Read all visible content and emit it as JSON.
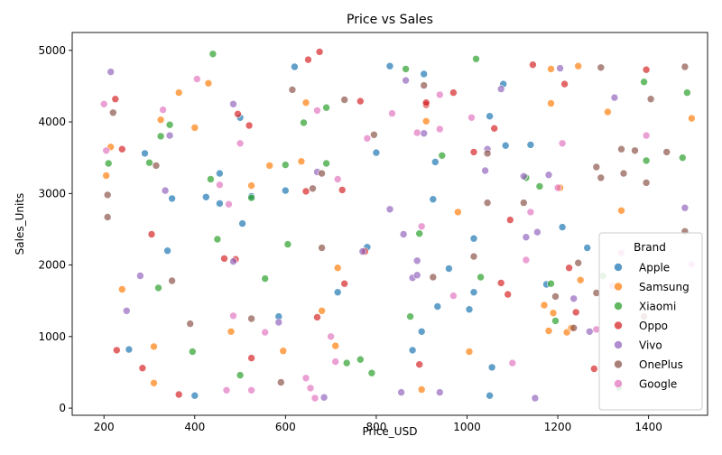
{
  "chart_data": {
    "type": "scatter",
    "title": "Price vs Sales",
    "xlabel": "Price_USD",
    "ylabel": "Sales_Units",
    "xlim": [
      130,
      1530
    ],
    "ylim": [
      -100,
      5250
    ],
    "xticks": [
      200,
      400,
      600,
      800,
      1000,
      1200,
      1400
    ],
    "yticks": [
      0,
      1000,
      2000,
      3000,
      4000,
      5000
    ],
    "grid": false,
    "legend": {
      "title": "Brand",
      "placement": "lower right"
    },
    "series": [
      {
        "name": "Apple",
        "color": "#1f77b4",
        "points": [
          [
            255,
            820
          ],
          [
            290,
            3560
          ],
          [
            340,
            2200
          ],
          [
            350,
            2930
          ],
          [
            400,
            175
          ],
          [
            425,
            2950
          ],
          [
            455,
            2860
          ],
          [
            455,
            3280
          ],
          [
            500,
            4060
          ],
          [
            505,
            2580
          ],
          [
            525,
            2960
          ],
          [
            585,
            1280
          ],
          [
            600,
            3040
          ],
          [
            620,
            4770
          ],
          [
            715,
            1620
          ],
          [
            780,
            2250
          ],
          [
            800,
            3570
          ],
          [
            830,
            4780
          ],
          [
            880,
            810
          ],
          [
            900,
            1070
          ],
          [
            905,
            4670
          ],
          [
            925,
            2920
          ],
          [
            930,
            3440
          ],
          [
            935,
            1420
          ],
          [
            960,
            1950
          ],
          [
            1005,
            1380
          ],
          [
            1015,
            2370
          ],
          [
            1015,
            1620
          ],
          [
            1050,
            4080
          ],
          [
            1050,
            175
          ],
          [
            1055,
            570
          ],
          [
            1080,
            4530
          ],
          [
            1085,
            3670
          ],
          [
            1140,
            3680
          ],
          [
            1175,
            1730
          ],
          [
            1210,
            2530
          ],
          [
            1265,
            2240
          ]
        ]
      },
      {
        "name": "Samsung",
        "color": "#ff7f0e",
        "points": [
          [
            205,
            3250
          ],
          [
            215,
            3650
          ],
          [
            240,
            1660
          ],
          [
            310,
            860
          ],
          [
            310,
            350
          ],
          [
            325,
            4030
          ],
          [
            365,
            4410
          ],
          [
            400,
            3920
          ],
          [
            430,
            4540
          ],
          [
            480,
            1070
          ],
          [
            525,
            3110
          ],
          [
            565,
            3390
          ],
          [
            595,
            800
          ],
          [
            635,
            3450
          ],
          [
            645,
            4270
          ],
          [
            680,
            1360
          ],
          [
            710,
            870
          ],
          [
            715,
            1960
          ],
          [
            900,
            260
          ],
          [
            910,
            4010
          ],
          [
            980,
            2740
          ],
          [
            1005,
            790
          ],
          [
            1170,
            1440
          ],
          [
            1180,
            1080
          ],
          [
            1185,
            4260
          ],
          [
            1185,
            4740
          ],
          [
            1190,
            1330
          ],
          [
            1205,
            3080
          ],
          [
            1220,
            1060
          ],
          [
            1230,
            1120
          ],
          [
            1245,
            4780
          ],
          [
            1250,
            1790
          ],
          [
            1310,
            4140
          ],
          [
            1340,
            2760
          ],
          [
            1495,
            4050
          ]
        ]
      },
      {
        "name": "Xiaomi",
        "color": "#2ca02c",
        "points": [
          [
            210,
            3420
          ],
          [
            300,
            3430
          ],
          [
            320,
            1680
          ],
          [
            325,
            3800
          ],
          [
            345,
            3960
          ],
          [
            395,
            790
          ],
          [
            435,
            3200
          ],
          [
            440,
            4950
          ],
          [
            450,
            2360
          ],
          [
            500,
            460
          ],
          [
            525,
            2940
          ],
          [
            555,
            1810
          ],
          [
            600,
            3400
          ],
          [
            605,
            2290
          ],
          [
            640,
            3990
          ],
          [
            690,
            4200
          ],
          [
            690,
            3420
          ],
          [
            735,
            630
          ],
          [
            765,
            680
          ],
          [
            790,
            490
          ],
          [
            865,
            4740
          ],
          [
            875,
            1280
          ],
          [
            895,
            2440
          ],
          [
            945,
            3530
          ],
          [
            1020,
            4880
          ],
          [
            1030,
            1830
          ],
          [
            1130,
            3220
          ],
          [
            1160,
            3100
          ],
          [
            1185,
            1740
          ],
          [
            1195,
            1220
          ],
          [
            1300,
            1850
          ],
          [
            1335,
            290
          ],
          [
            1390,
            4560
          ],
          [
            1395,
            3460
          ],
          [
            1475,
            3500
          ],
          [
            1485,
            4410
          ]
        ]
      },
      {
        "name": "Oppo",
        "color": "#d62728",
        "points": [
          [
            225,
            4320
          ],
          [
            228,
            810
          ],
          [
            240,
            3620
          ],
          [
            285,
            560
          ],
          [
            305,
            2430
          ],
          [
            365,
            190
          ],
          [
            465,
            2090
          ],
          [
            490,
            2080
          ],
          [
            495,
            4110
          ],
          [
            520,
            3950
          ],
          [
            525,
            700
          ],
          [
            645,
            3030
          ],
          [
            650,
            4870
          ],
          [
            670,
            1270
          ],
          [
            675,
            4980
          ],
          [
            725,
            3050
          ],
          [
            730,
            1740
          ],
          [
            765,
            4290
          ],
          [
            775,
            2190
          ],
          [
            895,
            610
          ],
          [
            910,
            4240
          ],
          [
            910,
            4270
          ],
          [
            970,
            4410
          ],
          [
            1015,
            3580
          ],
          [
            1060,
            3910
          ],
          [
            1075,
            1750
          ],
          [
            1090,
            1590
          ],
          [
            1095,
            2630
          ],
          [
            1145,
            4800
          ],
          [
            1215,
            4530
          ],
          [
            1225,
            1960
          ],
          [
            1240,
            1340
          ],
          [
            1280,
            550
          ],
          [
            1395,
            4730
          ]
        ]
      },
      {
        "name": "Vivo",
        "color": "#9467bd",
        "points": [
          [
            215,
            4700
          ],
          [
            250,
            1360
          ],
          [
            280,
            1850
          ],
          [
            335,
            3040
          ],
          [
            345,
            3810
          ],
          [
            485,
            4250
          ],
          [
            485,
            2050
          ],
          [
            585,
            1200
          ],
          [
            670,
            3300
          ],
          [
            685,
            150
          ],
          [
            770,
            2190
          ],
          [
            830,
            2780
          ],
          [
            855,
            220
          ],
          [
            860,
            2430
          ],
          [
            865,
            4580
          ],
          [
            880,
            1820
          ],
          [
            890,
            2060
          ],
          [
            890,
            1860
          ],
          [
            905,
            3840
          ],
          [
            940,
            220
          ],
          [
            1040,
            3320
          ],
          [
            1045,
            3620
          ],
          [
            1075,
            4460
          ],
          [
            1125,
            3240
          ],
          [
            1130,
            2390
          ],
          [
            1150,
            140
          ],
          [
            1155,
            2460
          ],
          [
            1180,
            3260
          ],
          [
            1205,
            4750
          ],
          [
            1235,
            1530
          ],
          [
            1270,
            1070
          ],
          [
            1325,
            4340
          ],
          [
            1480,
            2800
          ]
        ]
      },
      {
        "name": "OnePlus",
        "color": "#8c564b",
        "points": [
          [
            208,
            2980
          ],
          [
            208,
            2670
          ],
          [
            220,
            4130
          ],
          [
            315,
            3390
          ],
          [
            350,
            1780
          ],
          [
            390,
            1180
          ],
          [
            525,
            1250
          ],
          [
            590,
            360
          ],
          [
            615,
            4450
          ],
          [
            660,
            3070
          ],
          [
            680,
            3280
          ],
          [
            680,
            2240
          ],
          [
            730,
            4310
          ],
          [
            795,
            3820
          ],
          [
            905,
            4510
          ],
          [
            925,
            1830
          ],
          [
            1015,
            2120
          ],
          [
            1045,
            2870
          ],
          [
            1045,
            3560
          ],
          [
            1125,
            2870
          ],
          [
            1195,
            1560
          ],
          [
            1235,
            1120
          ],
          [
            1245,
            2030
          ],
          [
            1285,
            1610
          ],
          [
            1285,
            3370
          ],
          [
            1295,
            3220
          ],
          [
            1295,
            4760
          ],
          [
            1340,
            3620
          ],
          [
            1345,
            3280
          ],
          [
            1370,
            3600
          ],
          [
            1390,
            1280
          ],
          [
            1395,
            3150
          ],
          [
            1405,
            4320
          ],
          [
            1440,
            3580
          ],
          [
            1480,
            4770
          ],
          [
            1480,
            2470
          ]
        ]
      },
      {
        "name": "Google",
        "color": "#e377c2",
        "points": [
          [
            200,
            4250
          ],
          [
            205,
            3600
          ],
          [
            330,
            4170
          ],
          [
            405,
            4600
          ],
          [
            455,
            3120
          ],
          [
            470,
            250
          ],
          [
            475,
            2850
          ],
          [
            485,
            1290
          ],
          [
            500,
            3700
          ],
          [
            525,
            250
          ],
          [
            555,
            1060
          ],
          [
            645,
            420
          ],
          [
            655,
            280
          ],
          [
            665,
            140
          ],
          [
            670,
            4160
          ],
          [
            700,
            1000
          ],
          [
            710,
            650
          ],
          [
            715,
            3200
          ],
          [
            780,
            3770
          ],
          [
            835,
            4120
          ],
          [
            890,
            3850
          ],
          [
            900,
            2540
          ],
          [
            940,
            3900
          ],
          [
            940,
            4380
          ],
          [
            970,
            1570
          ],
          [
            1010,
            4060
          ],
          [
            1100,
            630
          ],
          [
            1130,
            2070
          ],
          [
            1140,
            2740
          ],
          [
            1200,
            3080
          ],
          [
            1210,
            3700
          ],
          [
            1285,
            1100
          ],
          [
            1320,
            1710
          ],
          [
            1340,
            2170
          ],
          [
            1395,
            3810
          ],
          [
            1495,
            2010
          ]
        ]
      }
    ]
  }
}
